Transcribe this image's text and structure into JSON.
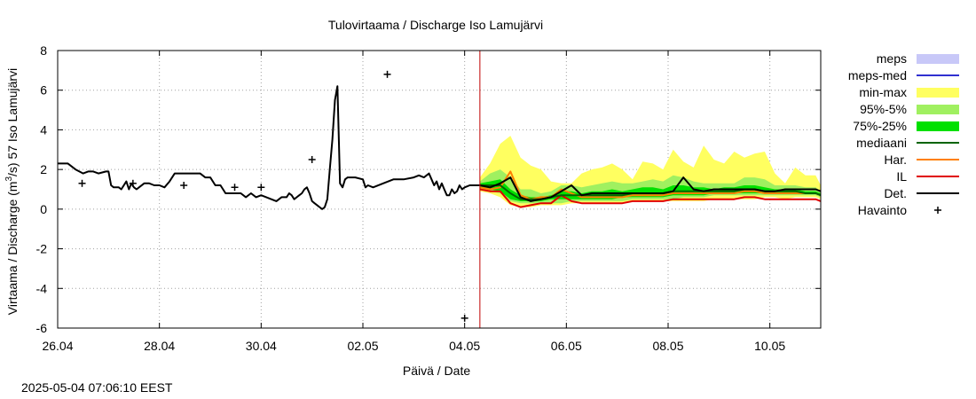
{
  "chart_data": {
    "type": "line",
    "title": "Tulovirtaama / Discharge  Iso Lamujärvi",
    "xlabel": "Päivä / Date",
    "ylabel_prefix": "Virtaama / Discharge (m",
    "ylabel_sup": "3",
    "ylabel_suffix": "/s)  57 Iso Lamujärvi",
    "xlim": [
      0,
      15.0
    ],
    "ylim": [
      -6,
      8
    ],
    "grid": true,
    "legend_position": "right",
    "x_ticks": [
      {
        "x": 0,
        "label": "26.04"
      },
      {
        "x": 2,
        "label": "28.04"
      },
      {
        "x": 4,
        "label": "30.04"
      },
      {
        "x": 6,
        "label": "02.05"
      },
      {
        "x": 8,
        "label": "04.05"
      },
      {
        "x": 10,
        "label": "06.05"
      },
      {
        "x": 12,
        "label": "08.05"
      },
      {
        "x": 14,
        "label": "10.05"
      }
    ],
    "y_ticks": [
      -6,
      -4,
      -2,
      0,
      2,
      4,
      6,
      8
    ],
    "forecast_start": 8.3,
    "colors": {
      "meps": "#c8c8f8",
      "meps_med": "#3030d0",
      "minmax": "#ffff60",
      "p95_5": "#a0f060",
      "p75_25": "#00e000",
      "mediaani": "#006400",
      "har": "#ff8000",
      "il": "#e00000",
      "det": "#000000",
      "vline": "#c00000"
    },
    "legend": [
      {
        "label": "meps",
        "kind": "box",
        "color": "#c8c8f8"
      },
      {
        "label": "meps-med",
        "kind": "line",
        "color": "#3030d0"
      },
      {
        "label": "min-max",
        "kind": "box",
        "color": "#ffff60"
      },
      {
        "label": "95%-5%",
        "kind": "box",
        "color": "#a0f060"
      },
      {
        "label": "75%-25%",
        "kind": "box",
        "color": "#00e000"
      },
      {
        "label": "mediaani",
        "kind": "line",
        "color": "#006400"
      },
      {
        "label": "Har.",
        "kind": "line",
        "color": "#ff8000"
      },
      {
        "label": "IL",
        "kind": "line",
        "color": "#e00000"
      },
      {
        "label": "Det.",
        "kind": "line",
        "color": "#000000"
      },
      {
        "label": "Havainto",
        "kind": "plus",
        "color": "#000000"
      }
    ],
    "observations": [
      {
        "x": 0.48,
        "y": 1.3
      },
      {
        "x": 1.48,
        "y": 1.3
      },
      {
        "x": 2.48,
        "y": 1.2
      },
      {
        "x": 3.48,
        "y": 1.1
      },
      {
        "x": 4.0,
        "y": 1.1
      },
      {
        "x": 5.0,
        "y": 2.5
      },
      {
        "x": 6.48,
        "y": 6.8
      },
      {
        "x": 8.0,
        "y": -5.5
      }
    ],
    "history": {
      "x": [
        0,
        0.2,
        0.35,
        0.5,
        0.6,
        0.7,
        0.8,
        0.95,
        1.0,
        1.05,
        1.1,
        1.2,
        1.25,
        1.35,
        1.4,
        1.45,
        1.5,
        1.55,
        1.6,
        1.7,
        1.8,
        1.9,
        2.0,
        2.1,
        2.2,
        2.3,
        2.4,
        2.5,
        2.6,
        2.7,
        2.8,
        2.9,
        3.0,
        3.1,
        3.2,
        3.3,
        3.4,
        3.5,
        3.6,
        3.7,
        3.8,
        3.9,
        4.0,
        4.1,
        4.2,
        4.3,
        4.4,
        4.5,
        4.55,
        4.6,
        4.65,
        4.7,
        4.75,
        4.8,
        4.85,
        4.9,
        4.95,
        5.0,
        5.05,
        5.1,
        5.2,
        5.25,
        5.3,
        5.35,
        5.4,
        5.45,
        5.5,
        5.55,
        5.6,
        5.65,
        5.7,
        5.75,
        5.85,
        6.0,
        6.05,
        6.1,
        6.2,
        6.4,
        6.6,
        6.8,
        7.0,
        7.1,
        7.2,
        7.25,
        7.3,
        7.35,
        7.4,
        7.45,
        7.5,
        7.55,
        7.6,
        7.65,
        7.7,
        7.75,
        7.8,
        7.85,
        7.9,
        7.95,
        8.0,
        8.1,
        8.2,
        8.3
      ],
      "y": [
        2.3,
        2.3,
        2.0,
        1.8,
        1.9,
        1.9,
        1.8,
        1.9,
        1.9,
        1.2,
        1.1,
        1.1,
        1.0,
        1.4,
        1.0,
        1.3,
        1.1,
        1.0,
        1.1,
        1.3,
        1.3,
        1.2,
        1.2,
        1.1,
        1.4,
        1.8,
        1.8,
        1.8,
        1.8,
        1.8,
        1.8,
        1.6,
        1.6,
        1.2,
        1.2,
        0.8,
        0.8,
        0.8,
        0.8,
        0.6,
        0.8,
        0.6,
        0.7,
        0.6,
        0.5,
        0.4,
        0.6,
        0.6,
        0.8,
        0.7,
        0.5,
        0.6,
        0.7,
        0.8,
        1.0,
        1.1,
        0.8,
        0.4,
        0.3,
        0.2,
        0.0,
        0.1,
        0.5,
        2.0,
        3.5,
        5.5,
        6.2,
        1.3,
        1.1,
        1.5,
        1.6,
        1.6,
        1.6,
        1.5,
        1.1,
        1.2,
        1.1,
        1.3,
        1.5,
        1.5,
        1.6,
        1.7,
        1.6,
        1.7,
        1.8,
        1.5,
        1.2,
        1.4,
        1.0,
        1.3,
        1.0,
        0.7,
        0.7,
        1.0,
        0.8,
        0.9,
        1.2,
        1.0,
        1.1,
        1.2,
        1.2,
        1.2
      ]
    },
    "forecast_x": [
      8.3,
      8.5,
      8.7,
      8.9,
      9.1,
      9.3,
      9.5,
      9.7,
      9.9,
      10.1,
      10.3,
      10.5,
      10.7,
      10.9,
      11.1,
      11.3,
      11.5,
      11.7,
      11.9,
      12.1,
      12.3,
      12.5,
      12.7,
      12.9,
      13.1,
      13.3,
      13.5,
      13.7,
      13.9,
      14.1,
      14.3,
      14.5,
      14.7,
      14.9,
      15.0
    ],
    "minmax_low": [
      0.9,
      0.8,
      0.6,
      0.2,
      0.1,
      0.1,
      0.2,
      0.2,
      0.2,
      0.3,
      0.3,
      0.3,
      0.3,
      0.3,
      0.3,
      0.4,
      0.4,
      0.4,
      0.4,
      0.4,
      0.4,
      0.4,
      0.4,
      0.5,
      0.5,
      0.5,
      0.5,
      0.5,
      0.6,
      0.6,
      0.5,
      0.6,
      0.6,
      0.6,
      0.5
    ],
    "minmax_high": [
      1.6,
      2.3,
      3.3,
      3.7,
      2.6,
      2.2,
      2.0,
      1.4,
      1.3,
      1.3,
      1.8,
      2.0,
      2.1,
      2.3,
      2.0,
      1.5,
      2.4,
      2.3,
      2.0,
      3.0,
      2.4,
      2.1,
      3.2,
      2.5,
      2.3,
      2.9,
      2.6,
      2.8,
      2.9,
      1.8,
      1.3,
      2.1,
      1.7,
      1.7,
      1.2
    ],
    "p95_5_low": [
      1.0,
      0.9,
      0.8,
      0.4,
      0.3,
      0.3,
      0.3,
      0.3,
      0.3,
      0.4,
      0.4,
      0.4,
      0.4,
      0.4,
      0.4,
      0.5,
      0.5,
      0.5,
      0.5,
      0.5,
      0.6,
      0.6,
      0.6,
      0.7,
      0.7,
      0.7,
      0.7,
      0.7,
      0.7,
      0.7,
      0.7,
      0.7,
      0.7,
      0.7,
      0.6
    ],
    "p95_5_high": [
      1.4,
      1.8,
      2.0,
      1.6,
      1.0,
      1.0,
      0.8,
      0.9,
      1.2,
      1.2,
      1.1,
      1.2,
      1.3,
      1.4,
      1.3,
      1.3,
      1.4,
      1.5,
      1.4,
      1.7,
      1.6,
      1.4,
      1.3,
      1.3,
      1.3,
      1.3,
      1.6,
      1.6,
      1.5,
      1.2,
      1.2,
      1.2,
      1.1,
      1.1,
      0.9
    ],
    "p75_25_low": [
      1.1,
      1.0,
      0.9,
      0.5,
      0.4,
      0.4,
      0.4,
      0.5,
      0.5,
      0.5,
      0.5,
      0.5,
      0.5,
      0.5,
      0.6,
      0.6,
      0.6,
      0.6,
      0.6,
      0.7,
      0.7,
      0.7,
      0.7,
      0.8,
      0.8,
      0.8,
      0.8,
      0.8,
      0.8,
      0.8,
      0.8,
      0.8,
      0.8,
      0.8,
      0.7
    ],
    "p75_25_high": [
      1.3,
      1.4,
      1.5,
      1.0,
      0.7,
      0.6,
      0.6,
      0.7,
      0.9,
      0.9,
      0.8,
      0.9,
      0.9,
      1.0,
      0.9,
      1.0,
      1.1,
      1.1,
      1.0,
      1.2,
      1.2,
      1.1,
      1.1,
      1.0,
      1.1,
      1.1,
      1.2,
      1.2,
      1.1,
      1.0,
      1.0,
      1.0,
      0.9,
      0.9,
      0.8
    ],
    "mediaani": [
      1.2,
      1.2,
      1.2,
      0.8,
      0.5,
      0.5,
      0.5,
      0.6,
      0.7,
      0.7,
      0.7,
      0.7,
      0.7,
      0.7,
      0.7,
      0.8,
      0.8,
      0.8,
      0.8,
      0.9,
      0.9,
      0.9,
      0.9,
      0.9,
      0.9,
      0.9,
      1.0,
      1.0,
      0.9,
      0.9,
      0.9,
      0.9,
      0.8,
      0.8,
      0.7
    ],
    "har": [
      1.1,
      1.0,
      1.1,
      1.9,
      0.7,
      0.5,
      0.6,
      0.6,
      1.0,
      0.8,
      0.6,
      0.6,
      0.6,
      0.6,
      0.6,
      0.7,
      0.7,
      0.7,
      0.7,
      0.8,
      0.8,
      0.8,
      0.8,
      0.8,
      0.8,
      0.8,
      0.9,
      0.9,
      0.8,
      0.8,
      0.8,
      0.8,
      0.8,
      0.8,
      0.7
    ],
    "il": [
      1.0,
      0.9,
      0.9,
      0.3,
      0.1,
      0.2,
      0.3,
      0.3,
      0.7,
      0.4,
      0.3,
      0.3,
      0.3,
      0.3,
      0.3,
      0.4,
      0.4,
      0.4,
      0.4,
      0.5,
      0.5,
      0.5,
      0.5,
      0.5,
      0.5,
      0.5,
      0.6,
      0.6,
      0.5,
      0.5,
      0.5,
      0.5,
      0.5,
      0.5,
      0.4
    ],
    "det": [
      1.2,
      1.1,
      1.3,
      1.6,
      0.6,
      0.4,
      0.5,
      0.6,
      0.9,
      1.2,
      0.7,
      0.8,
      0.8,
      0.8,
      0.8,
      0.8,
      0.8,
      0.8,
      0.8,
      0.9,
      1.6,
      1.0,
      0.9,
      1.0,
      1.0,
      1.0,
      1.0,
      1.0,
      0.9,
      0.9,
      1.0,
      1.0,
      1.0,
      1.0,
      0.9
    ]
  },
  "footer": {
    "timestamp": "2025-05-04 07:06:10 EEST"
  }
}
